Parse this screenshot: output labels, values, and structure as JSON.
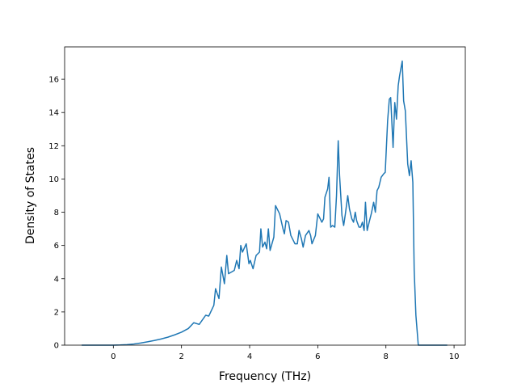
{
  "chart_data": {
    "type": "line",
    "x_label": "Frequency (THz)",
    "y_label": "Density of States",
    "xlim": [
      -1.43,
      10.33
    ],
    "ylim": [
      0,
      17.95
    ],
    "xticks": [
      0,
      2,
      4,
      6,
      8,
      10
    ],
    "yticks": [
      0,
      2,
      4,
      6,
      8,
      10,
      12,
      14,
      16
    ],
    "color": "#1f77b4",
    "x": [
      -0.93,
      -0.5,
      0,
      0.2,
      0.4,
      0.6,
      0.8,
      1.0,
      1.2,
      1.4,
      1.6,
      1.8,
      2.0,
      2.2,
      2.36,
      2.52,
      2.71,
      2.8,
      2.95,
      3.0,
      3.1,
      3.17,
      3.26,
      3.33,
      3.38,
      3.55,
      3.62,
      3.69,
      3.74,
      3.79,
      3.9,
      3.98,
      4.02,
      4.1,
      4.19,
      4.29,
      4.33,
      4.38,
      4.45,
      4.5,
      4.55,
      4.6,
      4.71,
      4.76,
      4.88,
      4.98,
      5.02,
      5.07,
      5.14,
      5.21,
      5.33,
      5.4,
      5.45,
      5.52,
      5.57,
      5.64,
      5.74,
      5.79,
      5.83,
      5.93,
      6.0,
      6.12,
      6.17,
      6.21,
      6.29,
      6.33,
      6.38,
      6.43,
      6.5,
      6.55,
      6.6,
      6.64,
      6.71,
      6.76,
      6.81,
      6.88,
      6.93,
      7.0,
      7.05,
      7.1,
      7.14,
      7.21,
      7.26,
      7.31,
      7.36,
      7.4,
      7.45,
      7.52,
      7.57,
      7.64,
      7.69,
      7.74,
      7.79,
      7.86,
      7.93,
      7.98,
      8.05,
      8.1,
      8.14,
      8.21,
      8.26,
      8.31,
      8.36,
      8.4,
      8.48,
      8.52,
      8.57,
      8.64,
      8.69,
      8.74,
      8.79,
      8.83,
      8.88,
      8.95,
      9.4,
      9.8
    ],
    "values": [
      0,
      0,
      0,
      0.01,
      0.03,
      0.07,
      0.13,
      0.2,
      0.28,
      0.37,
      0.48,
      0.62,
      0.78,
      1.0,
      1.35,
      1.25,
      1.8,
      1.75,
      2.4,
      3.4,
      2.8,
      4.7,
      3.7,
      5.4,
      4.3,
      4.5,
      5.1,
      4.6,
      6.0,
      5.6,
      6.1,
      4.9,
      5.1,
      4.6,
      5.4,
      5.6,
      7.0,
      5.9,
      6.2,
      5.8,
      7.0,
      5.7,
      6.5,
      8.4,
      7.9,
      7.0,
      6.7,
      7.5,
      7.4,
      6.6,
      6.1,
      6.1,
      6.9,
      6.4,
      5.9,
      6.6,
      6.9,
      6.6,
      6.1,
      6.6,
      7.9,
      7.4,
      7.6,
      8.9,
      9.4,
      10.1,
      7.1,
      7.2,
      7.1,
      9.0,
      12.3,
      10.2,
      7.8,
      7.2,
      7.9,
      9.0,
      8.2,
      7.6,
      7.4,
      8.0,
      7.5,
      7.1,
      7.1,
      7.4,
      6.9,
      8.6,
      6.9,
      7.5,
      7.9,
      8.6,
      8.0,
      9.3,
      9.5,
      10.1,
      10.3,
      10.4,
      13.5,
      14.8,
      14.9,
      11.9,
      14.6,
      13.6,
      15.6,
      16.2,
      17.1,
      14.7,
      14.1,
      10.9,
      10.2,
      11.1,
      9.8,
      4.5,
      1.8,
      0,
      0,
      0
    ]
  }
}
